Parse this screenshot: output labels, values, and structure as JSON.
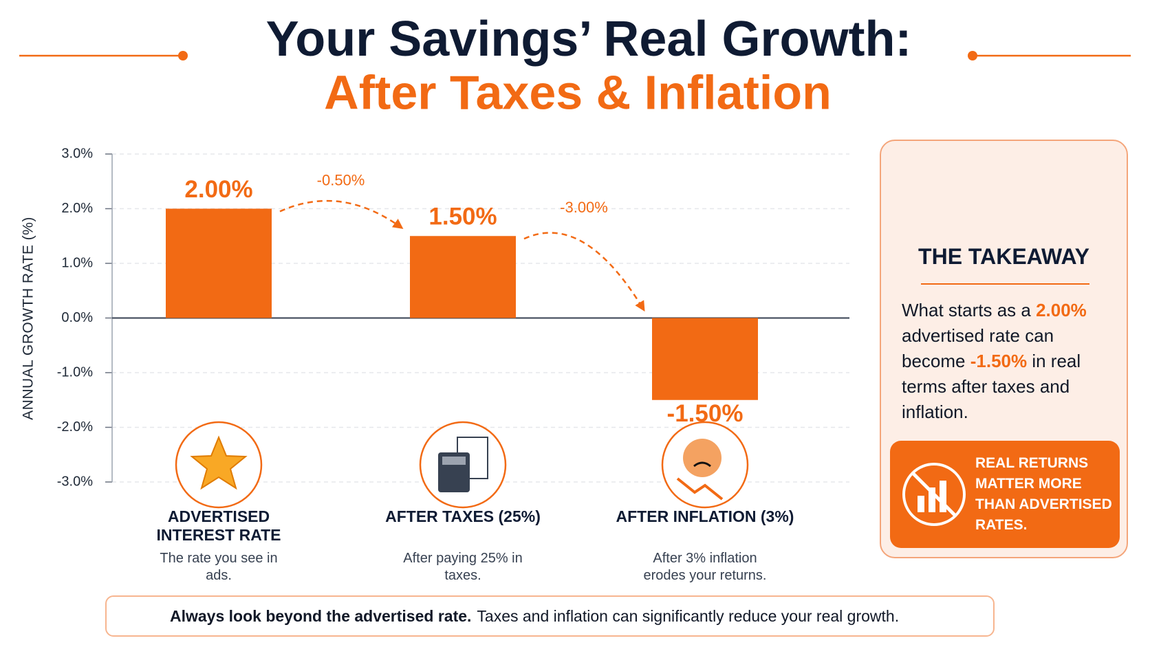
{
  "chart_data": {
    "type": "bar",
    "title": "Your Savings’ Real Growth:",
    "subtitle": "After Taxes & Inflation",
    "y_label": "ANNUAL GROWTH RATE (%)",
    "categories": [
      "ADVERTISED INTEREST RATE",
      "AFTER TAXES (25%)",
      "AFTER INFLATION (3%)"
    ],
    "descriptions": [
      "The rate you see in ads.",
      "After paying 25% in taxes.",
      "After 3% inflation erodes your returns."
    ],
    "values": [
      2.0,
      1.5,
      -1.5
    ],
    "value_labels": [
      "2.00%",
      "1.50%",
      "-1.50%"
    ],
    "change_labels": [
      "-0.50%",
      "-3.00%"
    ],
    "color": "#f26a14",
    "ylim": [
      -3,
      3
    ],
    "yticks": [
      {
        "value": 3,
        "label": "3.0%"
      },
      {
        "value": 2,
        "label": "2.0%"
      },
      {
        "value": 1,
        "label": "1.0%"
      },
      {
        "value": 0,
        "label": "0.0%"
      },
      {
        "value": -1,
        "label": "-1.0%"
      },
      {
        "value": -2,
        "label": "-2.0%"
      },
      {
        "value": -3,
        "label": "-3.0%"
      }
    ],
    "grid": true
  },
  "takeaway": {
    "title": "THE TAKEAWAY",
    "text_parts": [
      "What starts as a ",
      "2.00%",
      " advertised rate can become ",
      "-1.50%",
      " in real terms after taxes and inflation."
    ],
    "callout": "REAL RETURNS MATTER MORE THAN ADVERTISED RATES."
  },
  "tip": {
    "bold": "Always look beyond the advertised rate.",
    "text": "Taxes and inflation can significantly reduce your real growth."
  }
}
